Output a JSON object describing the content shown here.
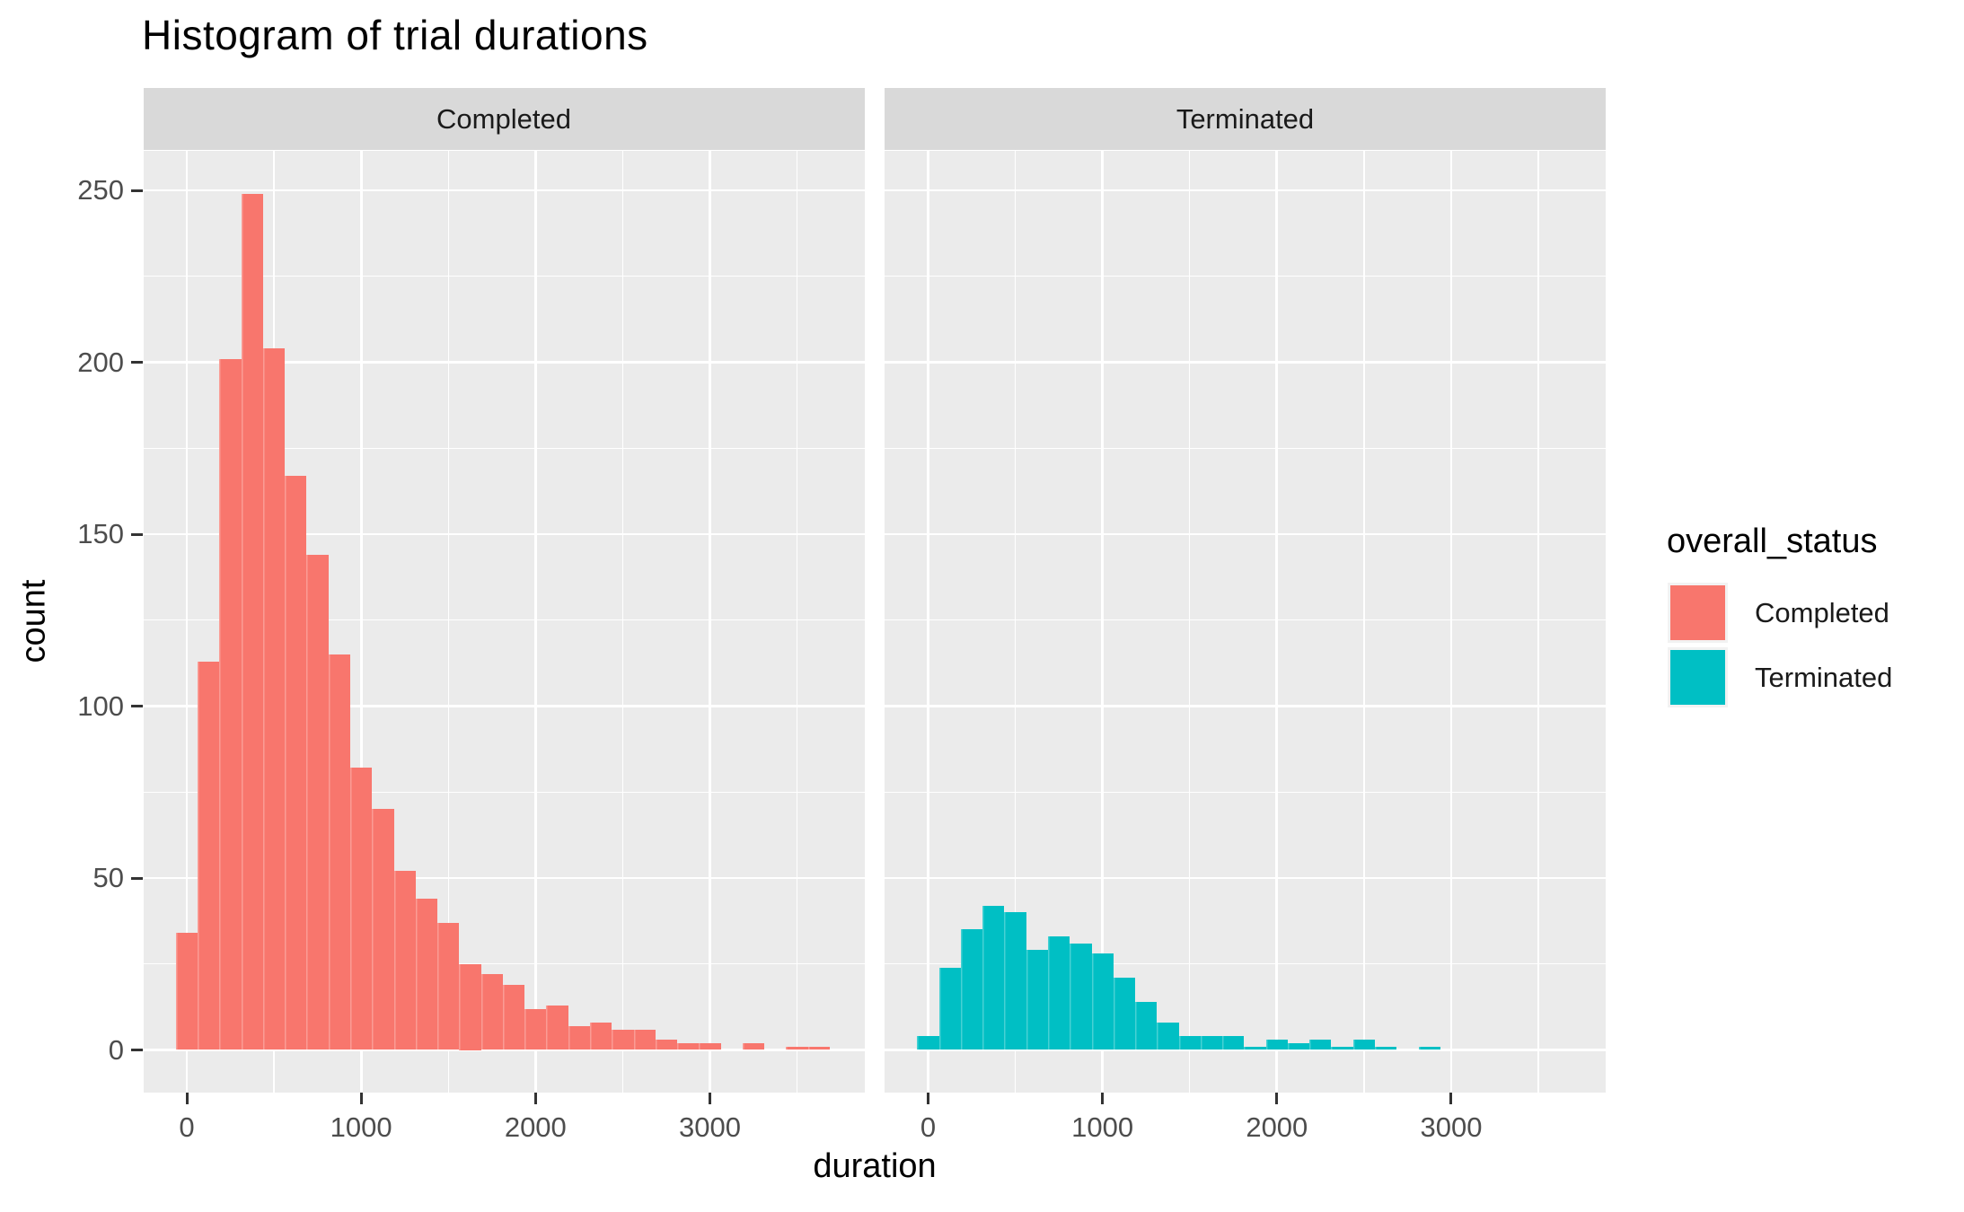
{
  "chart_data": {
    "type": "bar",
    "subtype": "faceted-histogram",
    "title": "Histogram of trial durations",
    "xlabel": "duration",
    "ylabel": "count",
    "binwidth": 125,
    "x_ticks": [
      0,
      1000,
      2000,
      3000
    ],
    "x_minor_ticks": [
      500,
      1500,
      2500,
      3500
    ],
    "y_ticks": [
      0,
      50,
      100,
      150,
      200,
      250
    ],
    "y_minor_ticks": [
      25,
      75,
      125,
      175,
      225
    ],
    "xlim": [
      -250,
      3875
    ],
    "ylim": [
      -12,
      261
    ],
    "grid": "on",
    "legend_position": "right",
    "facets": [
      {
        "label": "Completed",
        "series": "Completed"
      },
      {
        "label": "Terminated",
        "series": "Terminated"
      }
    ],
    "series": [
      {
        "name": "Completed",
        "color": "#F8766D",
        "bin_centers": [
          0,
          125,
          250,
          375,
          500,
          625,
          750,
          875,
          1000,
          1125,
          1250,
          1375,
          1500,
          1625,
          1750,
          1875,
          2000,
          2125,
          2250,
          2375,
          2500,
          2625,
          2750,
          2875,
          3000,
          3125,
          3250,
          3375,
          3500,
          3625
        ],
        "counts": [
          34,
          113,
          201,
          249,
          204,
          167,
          144,
          115,
          82,
          70,
          52,
          44,
          37,
          25,
          22,
          19,
          12,
          13,
          7,
          8,
          6,
          6,
          3,
          2,
          2,
          0,
          2,
          0,
          1,
          1
        ]
      },
      {
        "name": "Terminated",
        "color": "#00BFC4",
        "bin_centers": [
          0,
          125,
          250,
          375,
          500,
          625,
          750,
          875,
          1000,
          1125,
          1250,
          1375,
          1500,
          1625,
          1750,
          1875,
          2000,
          2125,
          2250,
          2375,
          2500,
          2625,
          2750,
          2875
        ],
        "counts": [
          4,
          24,
          35,
          42,
          40,
          29,
          33,
          31,
          28,
          21,
          14,
          8,
          4,
          4,
          4,
          1,
          3,
          2,
          3,
          1,
          3,
          1,
          0,
          1
        ]
      }
    ],
    "legend": {
      "title": "overall_status",
      "entries": [
        {
          "label": "Completed",
          "color": "#F8766D"
        },
        {
          "label": "Terminated",
          "color": "#00BFC4"
        }
      ]
    },
    "colors": {
      "panel_bg": "#EBEBEB",
      "strip_bg": "#D9D9D9",
      "gridline": "#FFFFFF",
      "axis_text": "#4D4D4D",
      "tick_mark": "#333333",
      "title_text": "#000000"
    }
  }
}
